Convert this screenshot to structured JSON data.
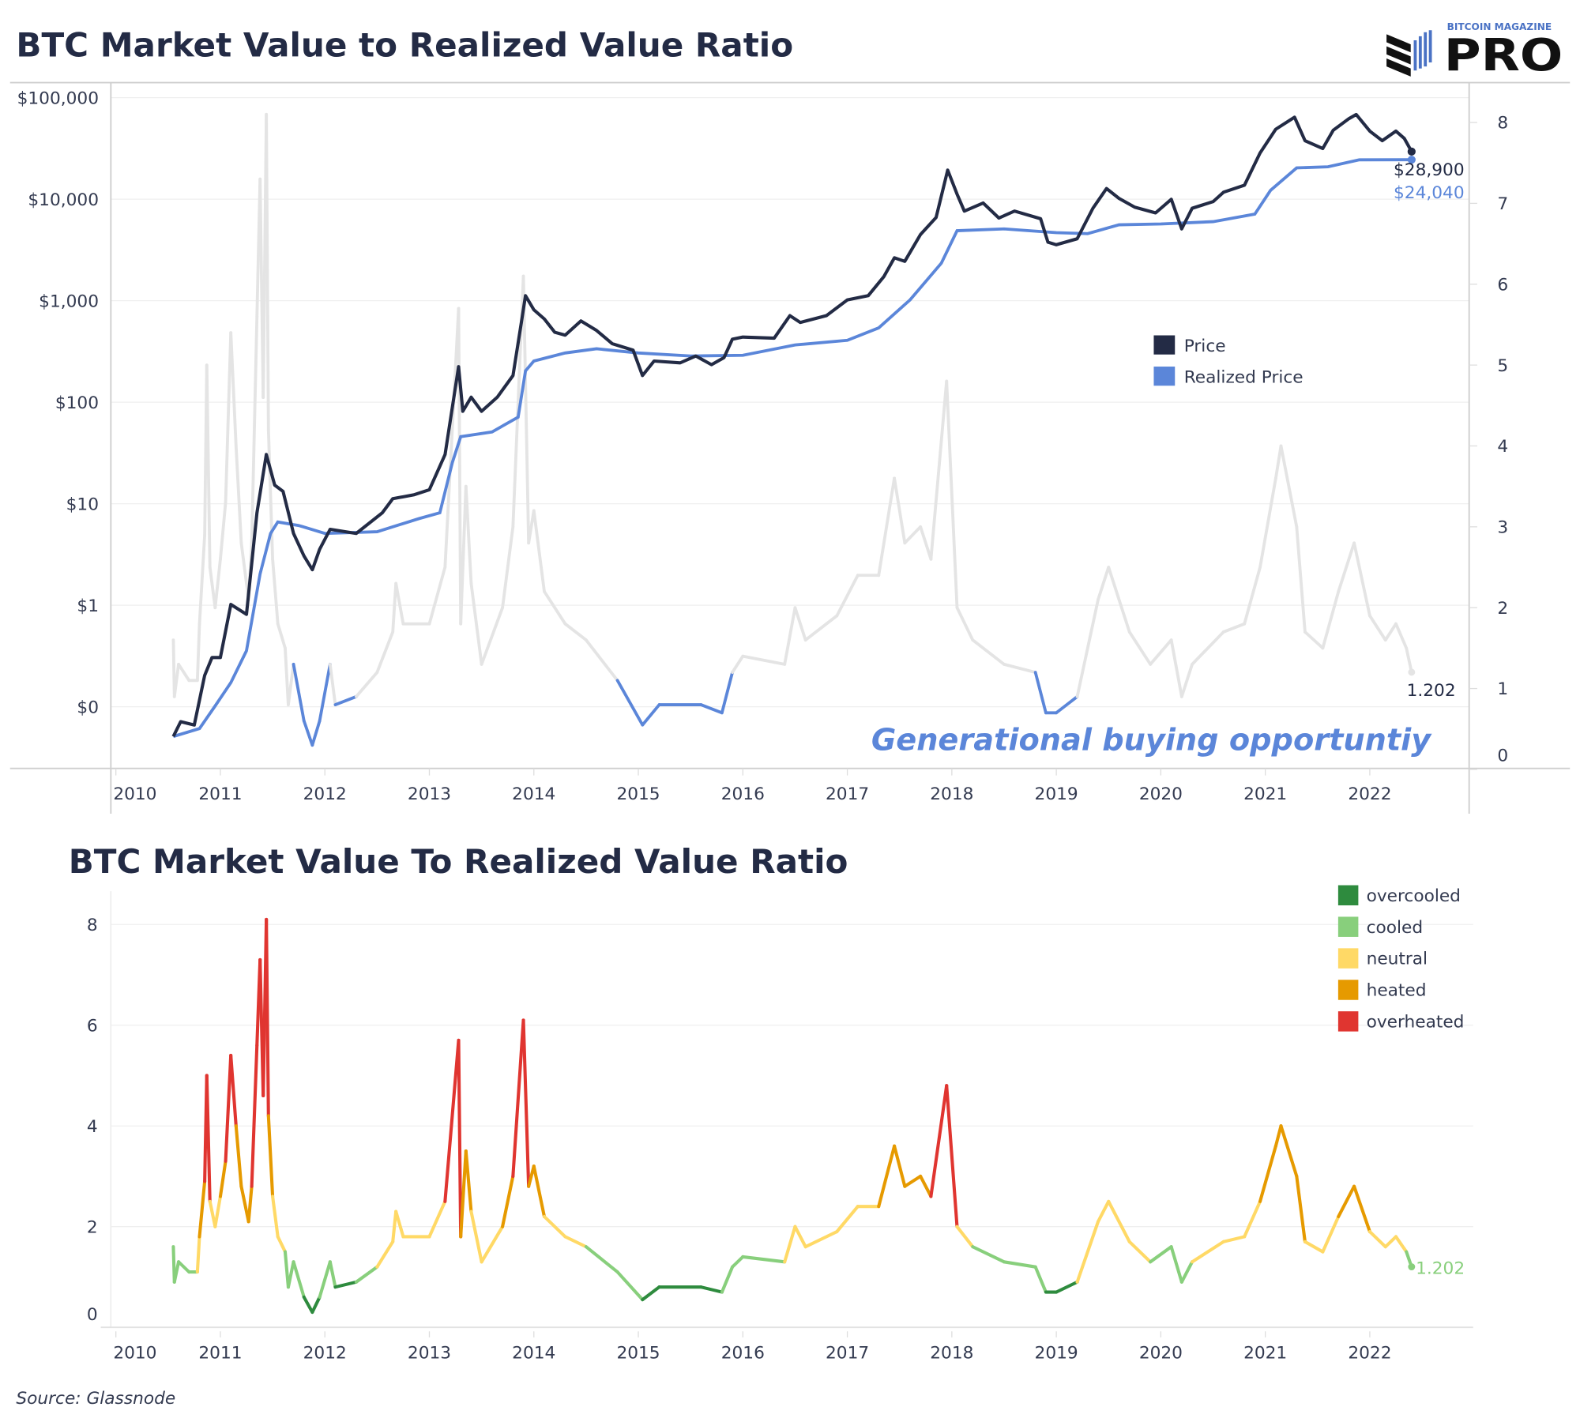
{
  "header": {
    "title": "BTC Market Value to Realized Value Ratio",
    "logo_top": "BITCOIN MAGAZINE",
    "logo_main": "PRO"
  },
  "source": "Source: Glassnode",
  "colors": {
    "price": "#232b45",
    "realized_price": "#5b86d9",
    "mvrv_gray": "#e4e4e4",
    "overcooled": "#2e8b3e",
    "cooled": "#88cf7c",
    "neutral": "#ffd966",
    "heated": "#e69a00",
    "overheated": "#e03530"
  },
  "chart_data": [
    {
      "type": "line",
      "title": "BTC Market Value to Realized Value Ratio",
      "y_scale": "log",
      "y_ticks": [
        "$100,000",
        "$10,000",
        "$1,000",
        "$100",
        "$10",
        "$1",
        "$0"
      ],
      "y2_ticks": [
        "8",
        "7",
        "6",
        "5",
        "4",
        "3",
        "2",
        "1",
        "0"
      ],
      "x_ticks": [
        "2010",
        "2011",
        "2012",
        "2013",
        "2014",
        "2015",
        "2016",
        "2017",
        "2018",
        "2019",
        "2020",
        "2021",
        "2022"
      ],
      "grid": true,
      "legend": {
        "position": "center-right",
        "items": [
          "Price",
          "Realized Price"
        ]
      },
      "last_price_label": "$28,900",
      "last_realized_label": "$24,040",
      "last_ratio_label": "1.202",
      "annotation": "Generational buying opportuntiy",
      "series": [
        {
          "name": "Price",
          "axis": "left",
          "points": [
            [
              2010.55,
              0.05
            ],
            [
              2010.62,
              0.07
            ],
            [
              2010.75,
              0.065
            ],
            [
              2010.85,
              0.2
            ],
            [
              2010.92,
              0.3
            ],
            [
              2011.0,
              0.3
            ],
            [
              2011.1,
              1.0
            ],
            [
              2011.25,
              0.8
            ],
            [
              2011.35,
              8
            ],
            [
              2011.44,
              30
            ],
            [
              2011.52,
              15
            ],
            [
              2011.6,
              13
            ],
            [
              2011.7,
              5
            ],
            [
              2011.8,
              3
            ],
            [
              2011.88,
              2.2
            ],
            [
              2011.95,
              3.5
            ],
            [
              2012.05,
              5.5
            ],
            [
              2012.3,
              5
            ],
            [
              2012.55,
              8
            ],
            [
              2012.65,
              11
            ],
            [
              2012.85,
              12
            ],
            [
              2013.0,
              13.5
            ],
            [
              2013.15,
              30
            ],
            [
              2013.28,
              220
            ],
            [
              2013.32,
              80
            ],
            [
              2013.4,
              110
            ],
            [
              2013.5,
              80
            ],
            [
              2013.65,
              110
            ],
            [
              2013.8,
              180
            ],
            [
              2013.88,
              600
            ],
            [
              2013.92,
              1100
            ],
            [
              2014.0,
              800
            ],
            [
              2014.1,
              650
            ],
            [
              2014.2,
              480
            ],
            [
              2014.3,
              450
            ],
            [
              2014.45,
              620
            ],
            [
              2014.6,
              500
            ],
            [
              2014.75,
              370
            ],
            [
              2014.95,
              320
            ],
            [
              2015.04,
              180
            ],
            [
              2015.15,
              250
            ],
            [
              2015.4,
              240
            ],
            [
              2015.55,
              280
            ],
            [
              2015.7,
              230
            ],
            [
              2015.82,
              270
            ],
            [
              2015.9,
              410
            ],
            [
              2016.0,
              430
            ],
            [
              2016.3,
              420
            ],
            [
              2016.45,
              700
            ],
            [
              2016.55,
              600
            ],
            [
              2016.8,
              700
            ],
            [
              2017.0,
              1000
            ],
            [
              2017.2,
              1100
            ],
            [
              2017.35,
              1700
            ],
            [
              2017.45,
              2600
            ],
            [
              2017.55,
              2400
            ],
            [
              2017.7,
              4400
            ],
            [
              2017.85,
              6500
            ],
            [
              2017.96,
              19000
            ],
            [
              2018.05,
              11000
            ],
            [
              2018.12,
              7500
            ],
            [
              2018.3,
              9000
            ],
            [
              2018.45,
              6400
            ],
            [
              2018.6,
              7500
            ],
            [
              2018.85,
              6300
            ],
            [
              2018.92,
              3700
            ],
            [
              2019.0,
              3500
            ],
            [
              2019.2,
              4000
            ],
            [
              2019.35,
              8000
            ],
            [
              2019.48,
              12500
            ],
            [
              2019.6,
              10000
            ],
            [
              2019.75,
              8200
            ],
            [
              2019.95,
              7200
            ],
            [
              2020.1,
              9800
            ],
            [
              2020.2,
              5000
            ],
            [
              2020.3,
              8000
            ],
            [
              2020.5,
              9300
            ],
            [
              2020.6,
              11500
            ],
            [
              2020.8,
              13500
            ],
            [
              2020.95,
              28000
            ],
            [
              2021.1,
              48000
            ],
            [
              2021.28,
              63000
            ],
            [
              2021.38,
              37000
            ],
            [
              2021.55,
              31000
            ],
            [
              2021.65,
              47000
            ],
            [
              2021.8,
              61000
            ],
            [
              2021.87,
              67000
            ],
            [
              2022.0,
              46000
            ],
            [
              2022.12,
              37000
            ],
            [
              2022.25,
              46000
            ],
            [
              2022.33,
              39000
            ],
            [
              2022.4,
              28900
            ]
          ]
        },
        {
          "name": "Realized Price",
          "axis": "left",
          "points": [
            [
              2010.55,
              0.05
            ],
            [
              2010.8,
              0.06
            ],
            [
              2010.95,
              0.1
            ],
            [
              2011.1,
              0.17
            ],
            [
              2011.25,
              0.35
            ],
            [
              2011.38,
              2
            ],
            [
              2011.48,
              5
            ],
            [
              2011.55,
              6.5
            ],
            [
              2011.75,
              6
            ],
            [
              2012.0,
              5
            ],
            [
              2012.5,
              5.2
            ],
            [
              2012.9,
              7
            ],
            [
              2013.1,
              8
            ],
            [
              2013.22,
              25
            ],
            [
              2013.3,
              45
            ],
            [
              2013.6,
              50
            ],
            [
              2013.85,
              70
            ],
            [
              2013.92,
              200
            ],
            [
              2014.0,
              250
            ],
            [
              2014.3,
              300
            ],
            [
              2014.6,
              330
            ],
            [
              2015.0,
              300
            ],
            [
              2015.5,
              280
            ],
            [
              2016.0,
              285
            ],
            [
              2016.5,
              360
            ],
            [
              2017.0,
              400
            ],
            [
              2017.3,
              530
            ],
            [
              2017.6,
              1000
            ],
            [
              2017.9,
              2300
            ],
            [
              2018.05,
              4800
            ],
            [
              2018.5,
              5000
            ],
            [
              2019.0,
              4600
            ],
            [
              2019.3,
              4500
            ],
            [
              2019.6,
              5500
            ],
            [
              2020.0,
              5600
            ],
            [
              2020.5,
              5900
            ],
            [
              2020.9,
              7000
            ],
            [
              2021.05,
              12000
            ],
            [
              2021.3,
              20000
            ],
            [
              2021.6,
              20500
            ],
            [
              2021.9,
              24000
            ],
            [
              2022.4,
              24040
            ]
          ]
        },
        {
          "name": "MVRV",
          "axis": "right",
          "ref": "mvrv"
        }
      ]
    },
    {
      "type": "line",
      "title": "BTC Market Value To Realized Value Ratio",
      "y_ticks": [
        "8",
        "6",
        "4",
        "2",
        "0"
      ],
      "ylim": [
        0,
        8
      ],
      "x_ticks": [
        "2010",
        "2011",
        "2012",
        "2013",
        "2014",
        "2015",
        "2016",
        "2017",
        "2018",
        "2019",
        "2020",
        "2021",
        "2022"
      ],
      "grid": true,
      "legend": {
        "position": "top-right",
        "items": [
          "overcooled",
          "cooled",
          "neutral",
          "heated",
          "overheated"
        ]
      },
      "last_value_label": "1.202",
      "mvrv": [
        [
          2010.55,
          1.6
        ],
        [
          2010.56,
          0.9
        ],
        [
          2010.6,
          1.3
        ],
        [
          2010.7,
          1.1
        ],
        [
          2010.78,
          1.1
        ],
        [
          2010.8,
          1.8
        ],
        [
          2010.85,
          2.9
        ],
        [
          2010.87,
          5.0
        ],
        [
          2010.9,
          2.5
        ],
        [
          2010.95,
          2.0
        ],
        [
          2011.0,
          2.6
        ],
        [
          2011.05,
          3.3
        ],
        [
          2011.1,
          5.4
        ],
        [
          2011.15,
          4.0
        ],
        [
          2011.2,
          2.8
        ],
        [
          2011.27,
          2.1
        ],
        [
          2011.3,
          2.8
        ],
        [
          2011.35,
          5.6
        ],
        [
          2011.38,
          7.3
        ],
        [
          2011.41,
          4.6
        ],
        [
          2011.44,
          8.1
        ],
        [
          2011.46,
          4.2
        ],
        [
          2011.5,
          2.6
        ],
        [
          2011.55,
          1.8
        ],
        [
          2011.62,
          1.5
        ],
        [
          2011.65,
          0.8
        ],
        [
          2011.7,
          1.3
        ],
        [
          2011.8,
          0.6
        ],
        [
          2011.88,
          0.3
        ],
        [
          2011.95,
          0.6
        ],
        [
          2012.05,
          1.3
        ],
        [
          2012.1,
          0.8
        ],
        [
          2012.3,
          0.9
        ],
        [
          2012.5,
          1.2
        ],
        [
          2012.65,
          1.7
        ],
        [
          2012.68,
          2.3
        ],
        [
          2012.75,
          1.8
        ],
        [
          2013.0,
          1.8
        ],
        [
          2013.15,
          2.5
        ],
        [
          2013.28,
          5.7
        ],
        [
          2013.3,
          1.8
        ],
        [
          2013.35,
          3.5
        ],
        [
          2013.4,
          2.3
        ],
        [
          2013.5,
          1.3
        ],
        [
          2013.7,
          2.0
        ],
        [
          2013.8,
          3.0
        ],
        [
          2013.9,
          6.1
        ],
        [
          2013.95,
          2.8
        ],
        [
          2014.0,
          3.2
        ],
        [
          2014.1,
          2.2
        ],
        [
          2014.3,
          1.8
        ],
        [
          2014.5,
          1.6
        ],
        [
          2014.8,
          1.1
        ],
        [
          2015.04,
          0.55
        ],
        [
          2015.2,
          0.8
        ],
        [
          2015.6,
          0.8
        ],
        [
          2015.8,
          0.7
        ],
        [
          2015.9,
          1.2
        ],
        [
          2016.0,
          1.4
        ],
        [
          2016.4,
          1.3
        ],
        [
          2016.5,
          2.0
        ],
        [
          2016.6,
          1.6
        ],
        [
          2016.9,
          1.9
        ],
        [
          2017.1,
          2.4
        ],
        [
          2017.3,
          2.4
        ],
        [
          2017.45,
          3.6
        ],
        [
          2017.55,
          2.8
        ],
        [
          2017.7,
          3.0
        ],
        [
          2017.8,
          2.6
        ],
        [
          2017.95,
          4.8
        ],
        [
          2018.05,
          2.0
        ],
        [
          2018.2,
          1.6
        ],
        [
          2018.5,
          1.3
        ],
        [
          2018.8,
          1.2
        ],
        [
          2018.9,
          0.7
        ],
        [
          2019.0,
          0.7
        ],
        [
          2019.2,
          0.9
        ],
        [
          2019.4,
          2.1
        ],
        [
          2019.5,
          2.5
        ],
        [
          2019.7,
          1.7
        ],
        [
          2019.9,
          1.3
        ],
        [
          2020.1,
          1.6
        ],
        [
          2020.2,
          0.9
        ],
        [
          2020.3,
          1.3
        ],
        [
          2020.6,
          1.7
        ],
        [
          2020.8,
          1.8
        ],
        [
          2020.95,
          2.5
        ],
        [
          2021.1,
          3.6
        ],
        [
          2021.15,
          4.0
        ],
        [
          2021.3,
          3.0
        ],
        [
          2021.38,
          1.7
        ],
        [
          2021.55,
          1.5
        ],
        [
          2021.7,
          2.2
        ],
        [
          2021.85,
          2.8
        ],
        [
          2022.0,
          1.9
        ],
        [
          2022.15,
          1.6
        ],
        [
          2022.25,
          1.8
        ],
        [
          2022.35,
          1.5
        ],
        [
          2022.4,
          1.202
        ]
      ]
    }
  ]
}
